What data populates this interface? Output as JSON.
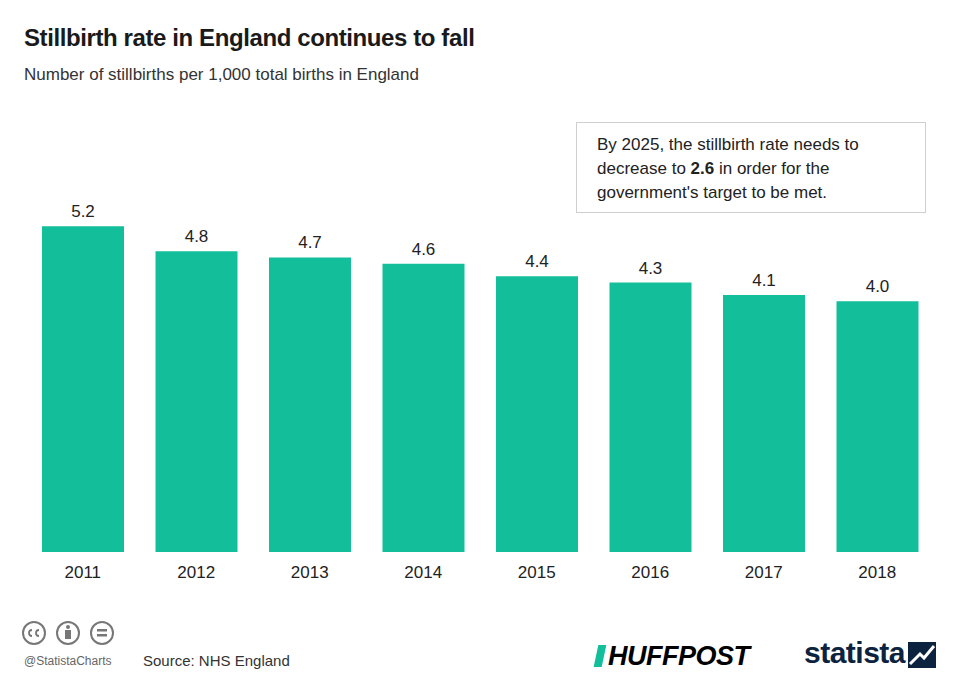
{
  "chart_data": {
    "type": "bar",
    "title": "Stillbirth rate in England continues to fall",
    "subtitle": "Number of stillbirths per 1,000 total births in England",
    "categories": [
      "2011",
      "2012",
      "2013",
      "2014",
      "2015",
      "2016",
      "2017",
      "2018"
    ],
    "values": [
      5.2,
      4.8,
      4.7,
      4.6,
      4.4,
      4.3,
      4.1,
      4.0
    ],
    "value_labels": [
      "5.2",
      "4.8",
      "4.7",
      "4.6",
      "4.4",
      "4.3",
      "4.1",
      "4.0"
    ],
    "color": "#12bf9a",
    "ylim": [
      0,
      6
    ],
    "grid": false,
    "data_labels": true,
    "tick_labels": "x",
    "annotation": {
      "text": "By 2025, the stillbirth rate needs to decrease to 2.6 in order for the government's target to be met.",
      "bold": "2.6"
    },
    "source": "Source: NHS England",
    "credit": "@StatistaCharts",
    "logos": [
      "HUFFPOST",
      "statista"
    ]
  }
}
